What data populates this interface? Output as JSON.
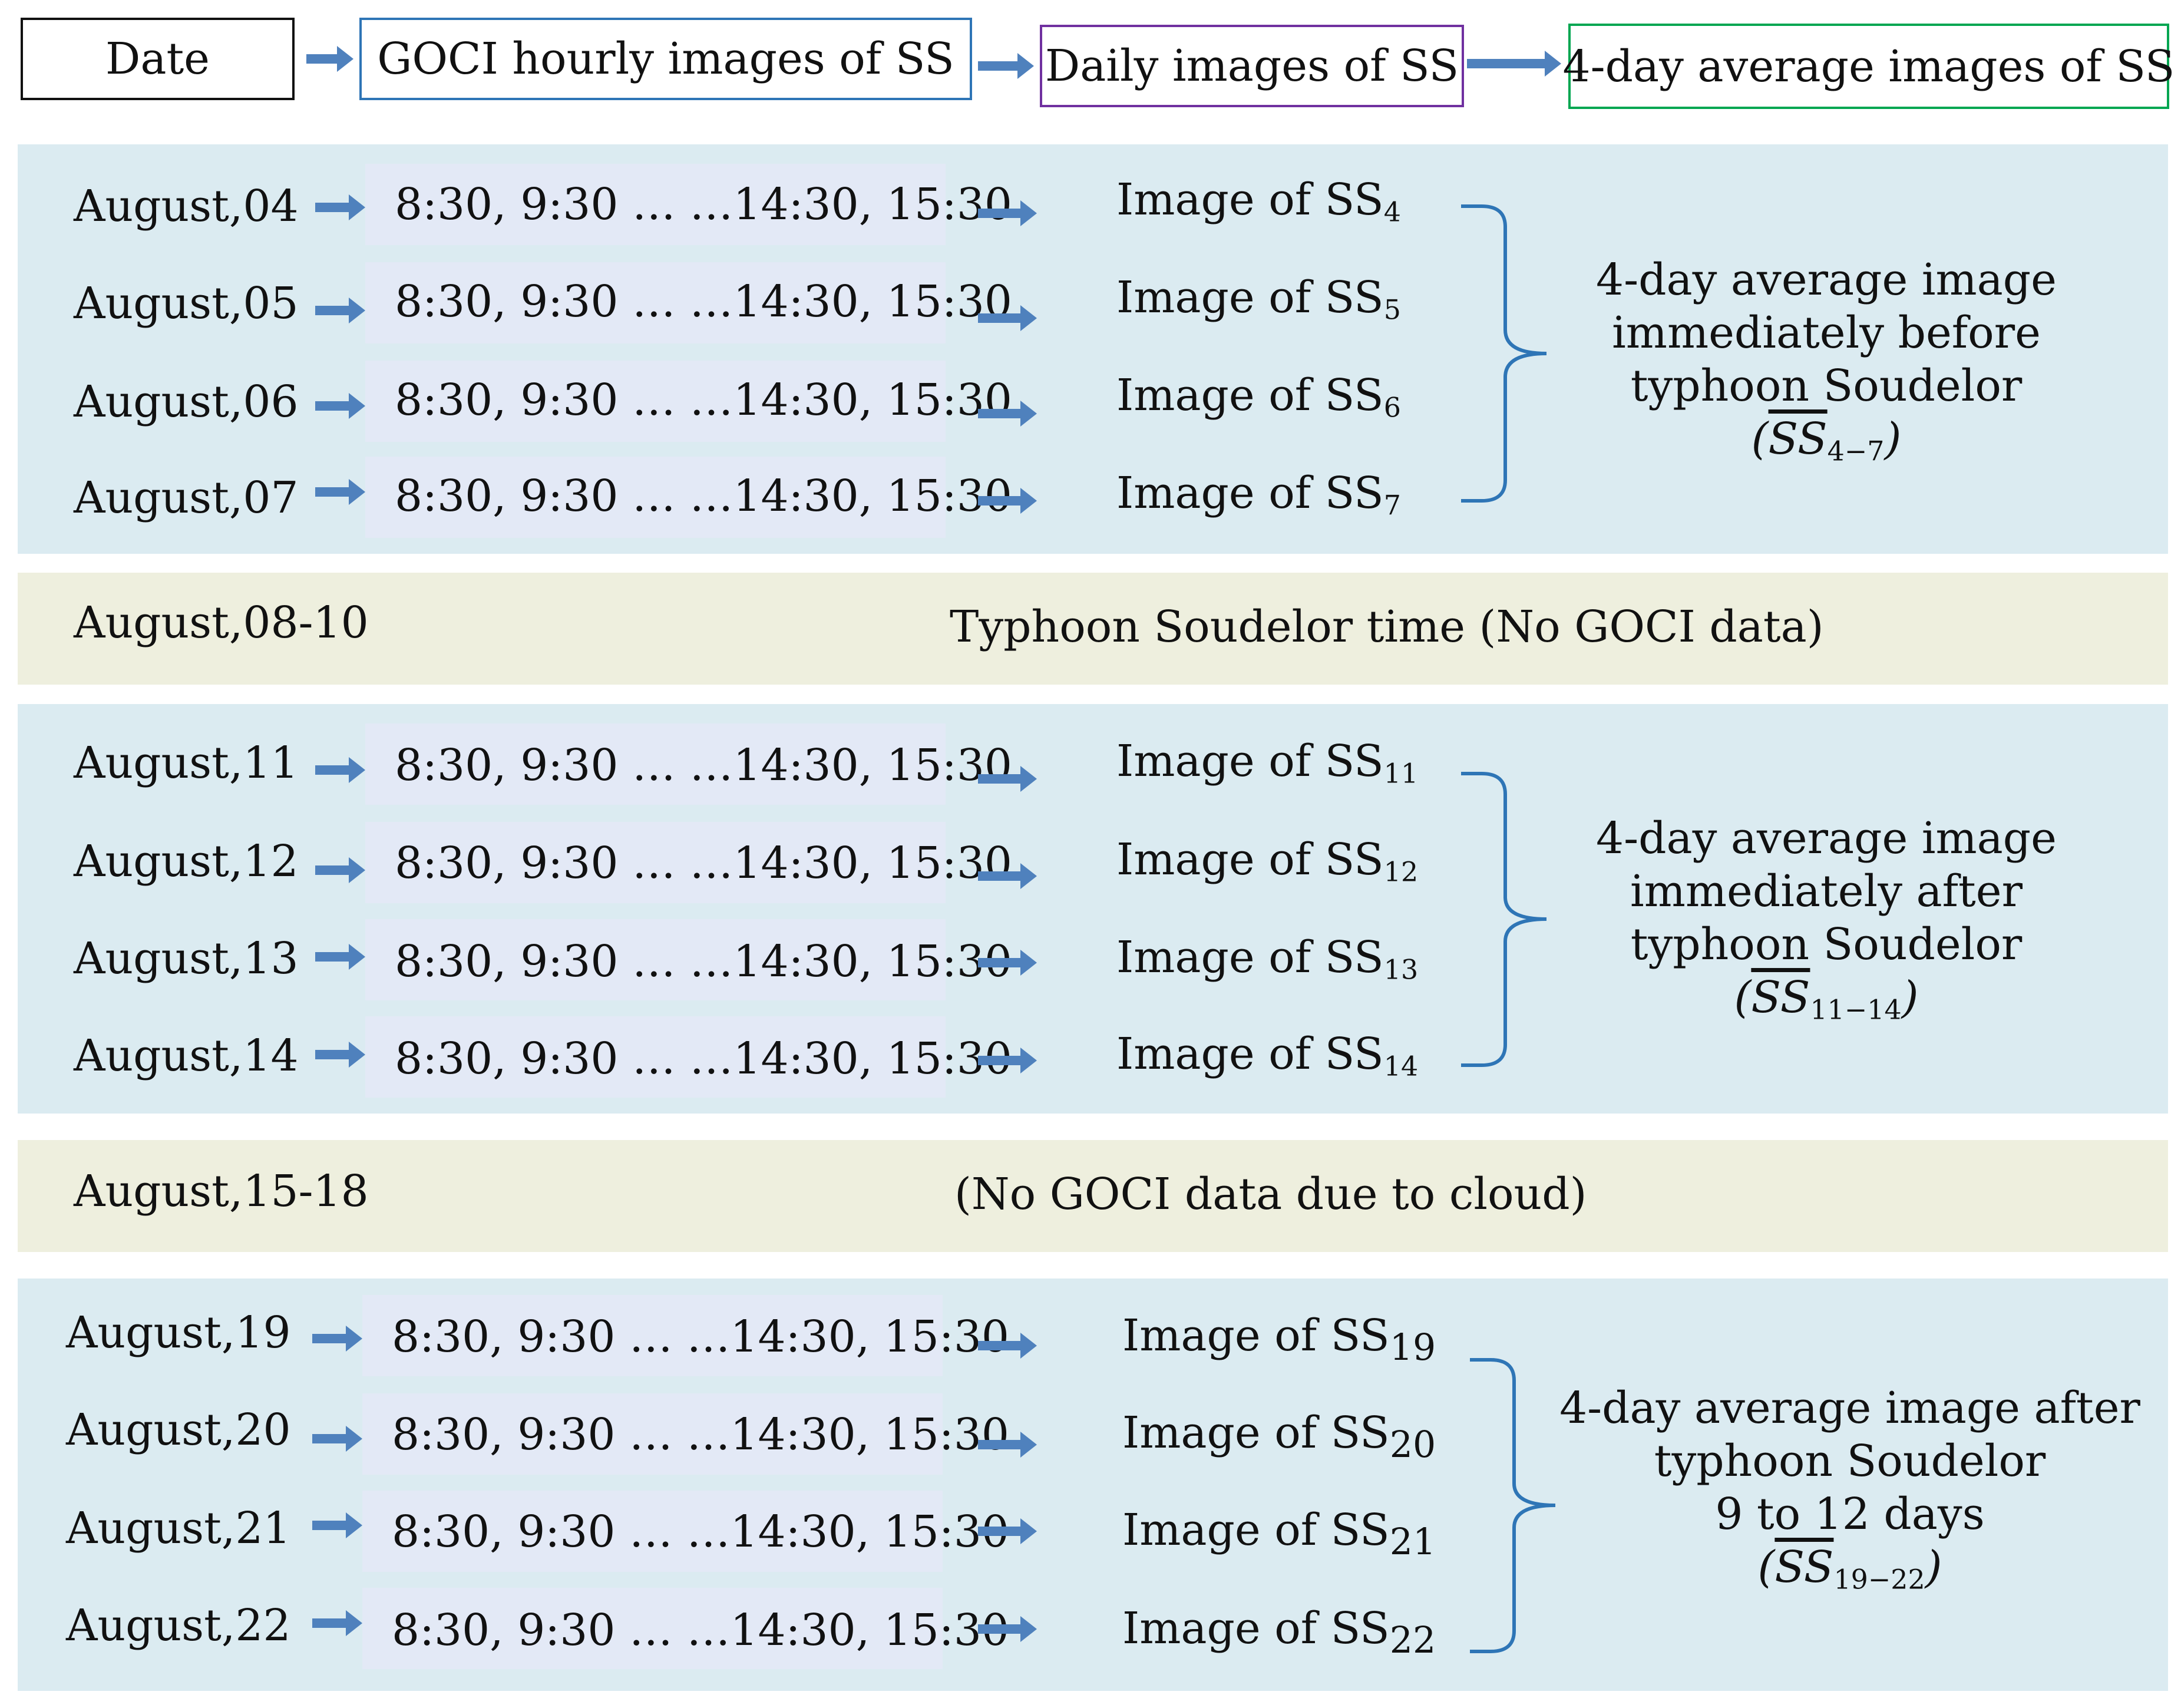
{
  "header": {
    "steps": [
      "Date",
      "GOCI hourly images of SS",
      "Daily images of SS",
      "4-day average images of SS"
    ],
    "colors": [
      "#111111",
      "#2e75b6",
      "#7030a0",
      "#00a651"
    ]
  },
  "time_label": "8:30, 9:30 … …14:30, 15:30",
  "image_prefix": "Image of SS",
  "groups": [
    {
      "days": [
        {
          "date": "August,04",
          "sub": "4"
        },
        {
          "date": "August,05",
          "sub": "5"
        },
        {
          "date": "August,06",
          "sub": "6"
        },
        {
          "date": "August,07",
          "sub": "7"
        }
      ],
      "summary_lines": [
        "4-day average  image",
        "immediately  before",
        "typhoon Soudelor"
      ],
      "formula_sub": "4−7"
    },
    {
      "days": [
        {
          "date": "August,11",
          "sub": "11"
        },
        {
          "date": "August,12",
          "sub": "12"
        },
        {
          "date": "August,13",
          "sub": "13"
        },
        {
          "date": "August,14",
          "sub": "14"
        }
      ],
      "summary_lines": [
        "4-day average  image",
        "immediately  after",
        "typhoon Soudelor"
      ],
      "formula_sub": "11−14"
    },
    {
      "days": [
        {
          "date": "August,19",
          "sub": "19"
        },
        {
          "date": "August,20",
          "sub": "20"
        },
        {
          "date": "August,21",
          "sub": "21"
        },
        {
          "date": "August,22",
          "sub": "22"
        }
      ],
      "summary_lines": [
        "4-day average  image after",
        "typhoon Soudelor",
        "9 to 12 days"
      ],
      "formula_sub": "19−22"
    }
  ],
  "gaps": [
    {
      "date": "August,08-10",
      "note": "Typhoon Soudelor time (No GOCI data)"
    },
    {
      "date": "August,15-18",
      "note": "(No GOCI data due to cloud)"
    }
  ],
  "formula_base": "SS",
  "arrow_color": "#4f81bd",
  "brace_color": "#2e75b6"
}
